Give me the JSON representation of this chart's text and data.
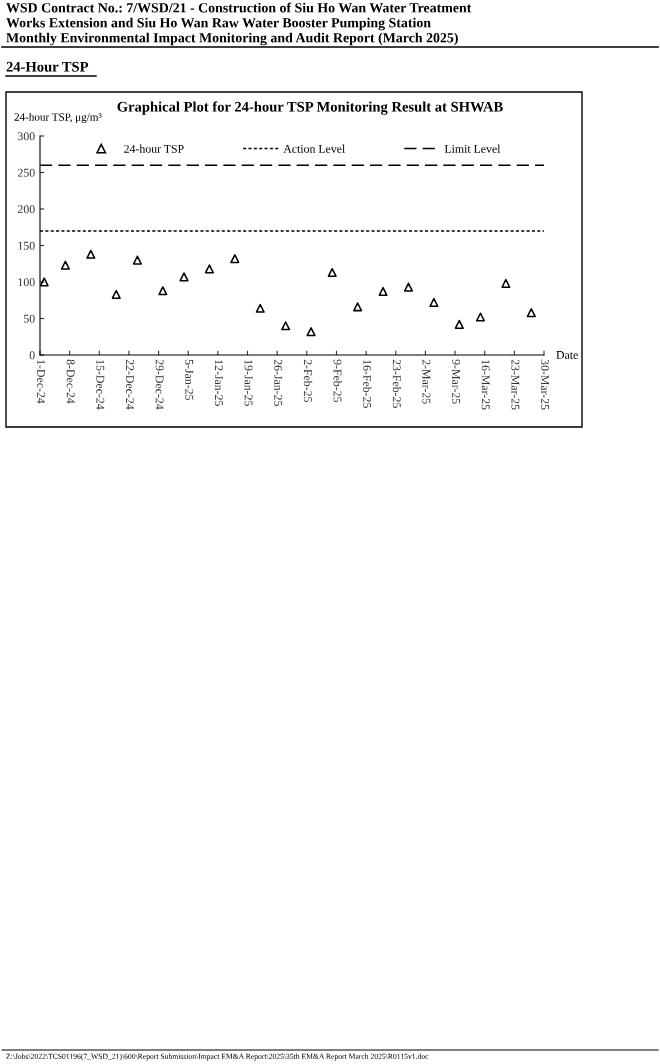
{
  "chart_data": {
    "type": "scatter",
    "title": "Graphical Plot for 24-hour TSP Monitoring Result at SHWAB",
    "xlabel": "Date",
    "ylabel": "24-hour TSP, μg/m³",
    "annotations": [
      "WSD Contract No.: 7/WSD/21 - Construction of Siu Ho Wan Water Treatment",
      "Works Extension and Siu Ho Wan Raw Water Booster Pumping Station",
      "Monthly Environmental Impact Monitoring and Audit Report (March 2025)",
      "24-Hour TSP",
      "Z:\\Jobs\\2022\\TCS01196(7_WSD_21)\\600\\Report Submission\\Impact EM&A Report\\2025\\35th EM&A Report March 2025\\R0115v1.doc"
    ],
    "x": [
      "2024-12-02",
      "2024-12-07",
      "2024-12-13",
      "2024-12-19",
      "2024-12-24",
      "2024-12-30",
      "2025-01-04",
      "2025-01-10",
      "2025-01-16",
      "2025-01-22",
      "2025-01-28",
      "2025-02-03",
      "2025-02-08",
      "2025-02-14",
      "2025-02-20",
      "2025-02-26",
      "2025-03-04",
      "2025-03-10",
      "2025-03-15",
      "2025-03-21",
      "2025-03-27"
    ],
    "series": [
      {
        "name": "24-hour TSP",
        "color": "#000000",
        "values": [
          100,
          123,
          138,
          83,
          130,
          88,
          107,
          118,
          132,
          64,
          40,
          32,
          113,
          66,
          87,
          93,
          72,
          42,
          52,
          98,
          58
        ]
      }
    ],
    "marker": "triangle",
    "ref_lines": [
      {
        "axis": "y",
        "value": 170,
        "label": "Action Level",
        "color": "#000000",
        "line_style": "dotted"
      },
      {
        "axis": "y",
        "value": 260,
        "label": "Limit Level",
        "color": "#000000",
        "line_style": "dashed"
      }
    ],
    "xlim": [
      "2024-12-01",
      "2025-03-30"
    ],
    "xticks": [
      {
        "value": "2024-12-01",
        "label": "1-Dec-24"
      },
      {
        "value": "2024-12-08",
        "label": "8-Dec-24"
      },
      {
        "value": "2024-12-15",
        "label": "15-Dec-24"
      },
      {
        "value": "2024-12-22",
        "label": "22-Dec-24"
      },
      {
        "value": "2024-12-29",
        "label": "29-Dec-24"
      },
      {
        "value": "2025-01-05",
        "label": "5-Jan-25"
      },
      {
        "value": "2025-01-12",
        "label": "12-Jan-25"
      },
      {
        "value": "2025-01-19",
        "label": "19-Jan-25"
      },
      {
        "value": "2025-01-26",
        "label": "26-Jan-25"
      },
      {
        "value": "2025-02-02",
        "label": "2-Feb-25"
      },
      {
        "value": "2025-02-09",
        "label": "9-Feb-25"
      },
      {
        "value": "2025-02-16",
        "label": "16-Feb-25"
      },
      {
        "value": "2025-02-23",
        "label": "23-Feb-25"
      },
      {
        "value": "2025-03-02",
        "label": "2-Mar-25"
      },
      {
        "value": "2025-03-09",
        "label": "9-Mar-25"
      },
      {
        "value": "2025-03-16",
        "label": "16-Mar-25"
      },
      {
        "value": "2025-03-23",
        "label": "23-Mar-25"
      },
      {
        "value": "2025-03-30",
        "label": "30-Mar-25"
      }
    ],
    "ylim": [
      0,
      300
    ],
    "yticks": [
      0,
      50,
      100,
      150,
      200,
      250,
      300
    ],
    "grid": false,
    "legend": "top"
  }
}
